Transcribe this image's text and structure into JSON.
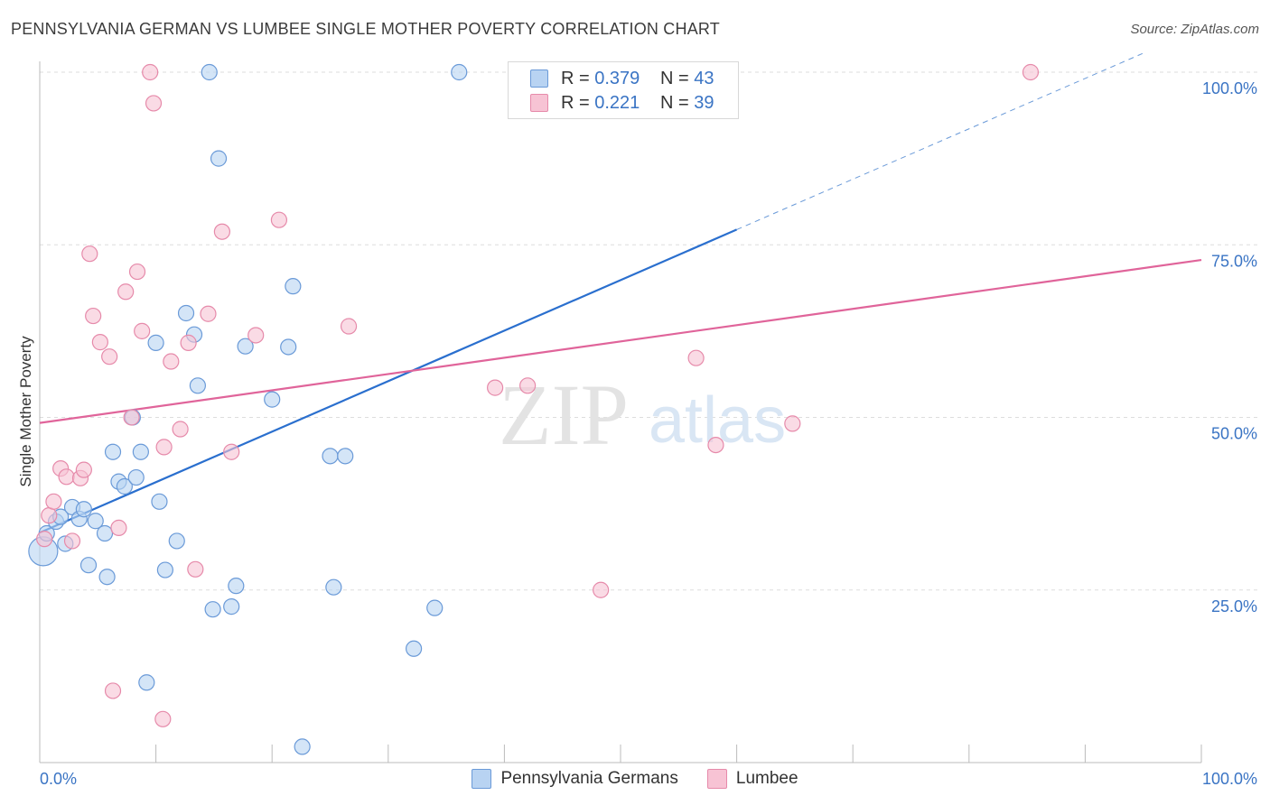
{
  "title": "PENNSYLVANIA GERMAN VS LUMBEE SINGLE MOTHER POVERTY CORRELATION CHART",
  "source": "Source: ZipAtlas.com",
  "watermark": {
    "part1": "ZIP",
    "part2": "atlas"
  },
  "legend": {
    "rows": [
      {
        "r_label": "R =",
        "r_value": "0.379",
        "n_label": "N =",
        "n_value": "43"
      },
      {
        "r_label": "R =",
        "r_value": "0.221",
        "n_label": "N =",
        "n_value": "39"
      }
    ]
  },
  "colors": {
    "blue_fill": "#b8d3f2",
    "blue_stroke": "#6a9ad8",
    "blue_line": "#2a6fce",
    "pink_fill": "#f7c3d4",
    "pink_stroke": "#e68aaa",
    "pink_line": "#e0649a",
    "axis_label": "#3a74c4",
    "grid": "#dddddd"
  },
  "chart_data": {
    "type": "scatter",
    "title": "PENNSYLVANIA GERMAN VS LUMBEE SINGLE MOTHER POVERTY CORRELATION CHART",
    "xlabel": "",
    "ylabel": "Single Mother Poverty",
    "xlim": [
      0,
      100
    ],
    "ylim": [
      0,
      100
    ],
    "x_tick_labels": [
      "0.0%",
      "100.0%"
    ],
    "y_tick_labels": [
      "25.0%",
      "50.0%",
      "75.0%",
      "100.0%"
    ],
    "y_ticks": [
      25,
      50,
      75,
      100
    ],
    "grid": true,
    "legend_placement": "bottom",
    "series": [
      {
        "name": "Pennsylvania Germans",
        "R": 0.379,
        "N": 43,
        "points": [
          [
            0.3,
            30.6,
            2
          ],
          [
            0.6,
            33.2,
            1
          ],
          [
            1.4,
            34.9,
            1
          ],
          [
            1.8,
            35.6,
            1
          ],
          [
            2.2,
            31.7,
            1
          ],
          [
            2.8,
            37.0,
            1
          ],
          [
            3.4,
            35.3,
            1
          ],
          [
            3.8,
            36.7,
            1
          ],
          [
            4.2,
            28.6,
            1
          ],
          [
            4.8,
            35.0,
            1
          ],
          [
            5.6,
            33.2,
            1
          ],
          [
            5.8,
            26.9,
            1
          ],
          [
            6.3,
            45.0,
            1
          ],
          [
            6.8,
            40.7,
            1
          ],
          [
            7.3,
            40.0,
            1
          ],
          [
            8.0,
            50.0,
            1
          ],
          [
            8.3,
            41.3,
            1
          ],
          [
            8.7,
            45.0,
            1
          ],
          [
            9.2,
            11.6,
            1
          ],
          [
            10.0,
            60.8,
            1
          ],
          [
            10.3,
            37.8,
            1
          ],
          [
            10.8,
            27.9,
            1
          ],
          [
            11.8,
            32.1,
            1
          ],
          [
            12.6,
            65.1,
            1
          ],
          [
            13.3,
            62.0,
            1
          ],
          [
            13.6,
            54.6,
            1
          ],
          [
            14.6,
            100.0,
            1
          ],
          [
            14.9,
            22.2,
            1
          ],
          [
            15.4,
            87.5,
            1
          ],
          [
            16.5,
            22.6,
            1
          ],
          [
            16.9,
            25.6,
            1
          ],
          [
            17.7,
            60.3,
            1
          ],
          [
            20.0,
            52.6,
            1
          ],
          [
            21.4,
            60.2,
            1
          ],
          [
            21.8,
            69.0,
            1
          ],
          [
            22.6,
            2.3,
            1
          ],
          [
            25.0,
            44.4,
            1
          ],
          [
            25.3,
            25.4,
            1
          ],
          [
            26.3,
            44.4,
            1
          ],
          [
            32.2,
            16.5,
            1
          ],
          [
            34.0,
            22.4,
            1
          ],
          [
            36.1,
            100.0,
            1
          ],
          [
            58.9,
            100.0,
            1
          ]
        ]
      },
      {
        "name": "Lumbee",
        "R": 0.221,
        "N": 39,
        "points": [
          [
            0.4,
            32.4,
            1
          ],
          [
            0.8,
            35.8,
            1
          ],
          [
            1.2,
            37.8,
            1
          ],
          [
            1.8,
            42.6,
            1
          ],
          [
            2.3,
            41.4,
            1
          ],
          [
            2.8,
            32.1,
            1
          ],
          [
            3.5,
            41.2,
            1
          ],
          [
            3.8,
            42.4,
            1
          ],
          [
            4.3,
            73.7,
            1
          ],
          [
            4.6,
            64.7,
            1
          ],
          [
            5.2,
            60.9,
            1
          ],
          [
            6.0,
            58.8,
            1
          ],
          [
            6.3,
            10.4,
            1
          ],
          [
            6.8,
            34.0,
            1
          ],
          [
            7.4,
            68.2,
            1
          ],
          [
            7.9,
            50.0,
            1
          ],
          [
            8.4,
            71.1,
            1
          ],
          [
            8.8,
            62.5,
            1
          ],
          [
            9.5,
            100.0,
            1
          ],
          [
            9.8,
            95.5,
            1
          ],
          [
            10.6,
            6.3,
            1
          ],
          [
            10.7,
            45.7,
            1
          ],
          [
            11.3,
            58.1,
            1
          ],
          [
            12.1,
            48.3,
            1
          ],
          [
            12.8,
            60.8,
            1
          ],
          [
            13.4,
            28.0,
            1
          ],
          [
            14.5,
            65.0,
            1
          ],
          [
            15.7,
            76.9,
            1
          ],
          [
            16.5,
            45.0,
            1
          ],
          [
            18.6,
            61.9,
            1
          ],
          [
            20.6,
            78.6,
            1
          ],
          [
            26.6,
            63.2,
            1
          ],
          [
            39.2,
            54.3,
            1
          ],
          [
            42.0,
            54.6,
            1
          ],
          [
            48.3,
            25.0,
            1
          ],
          [
            56.5,
            58.6,
            1
          ],
          [
            58.2,
            46.0,
            1
          ],
          [
            64.8,
            49.1,
            1
          ],
          [
            85.3,
            100.0,
            1
          ]
        ]
      }
    ],
    "trendlines": [
      {
        "series": "Pennsylvania Germans",
        "x0": 0,
        "y0": 33.3,
        "x1": 60.0,
        "y1": 77.2,
        "dashed_to_x": 100,
        "dashed_to_y": 106.4
      },
      {
        "series": "Lumbee",
        "x0": 0,
        "y0": 49.2,
        "x1": 100,
        "y1": 72.8
      }
    ]
  }
}
